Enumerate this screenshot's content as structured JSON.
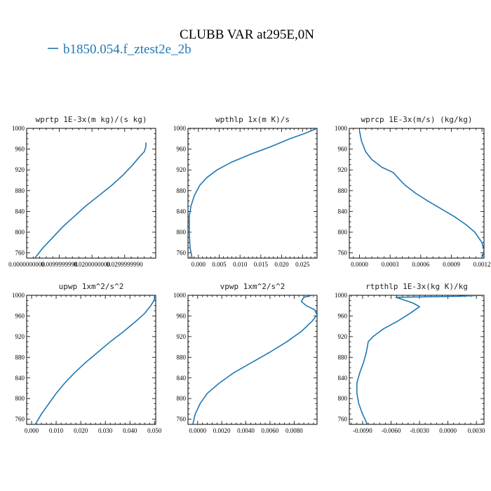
{
  "figure": {
    "title": "CLUBB VAR at295E,0N",
    "legend": [
      {
        "label": "b1850.054.f_ztest2e_2b",
        "color": "#1f77b4"
      }
    ]
  },
  "chart_data": [
    {
      "type": "line",
      "title": "wprtp  1E-3x(m kg)/(s kg)",
      "xlim": [
        0,
        0.0395
      ],
      "ylim": [
        1000,
        750
      ],
      "xticks": [
        0,
        0.01,
        0.02,
        0.03
      ],
      "xtick_labels": [
        "0.0000000000",
        "0.0099999998",
        "0.0200000000",
        "0.0299999990"
      ],
      "yticks": [
        760,
        800,
        840,
        880,
        920,
        960,
        1000
      ],
      "series": [
        {
          "color": "#1f77b4",
          "x": [
            0.0025,
            0.005,
            0.008,
            0.011,
            0.0145,
            0.018,
            0.022,
            0.026,
            0.0295,
            0.0325,
            0.0345,
            0.036,
            0.0365,
            0.0365
          ],
          "y": [
            750,
            770,
            790,
            810,
            830,
            850,
            870,
            890,
            910,
            930,
            945,
            955,
            965,
            972
          ]
        }
      ]
    },
    {
      "type": "line",
      "title": "wpthlp  1x(m K)/s",
      "xlim": [
        -0.0025,
        0.0285
      ],
      "ylim": [
        1000,
        750
      ],
      "xticks": [
        0,
        0.005,
        0.01,
        0.015,
        0.02,
        0.025
      ],
      "xtick_labels": [
        "0.000",
        "0.005",
        "0.010",
        "0.015",
        "0.020",
        "0.025"
      ],
      "yticks": [
        760,
        800,
        840,
        880,
        920,
        960,
        1000
      ],
      "series": [
        {
          "color": "#1f77b4",
          "x": [
            -0.0015,
            -0.002,
            -0.0022,
            -0.0022,
            -0.0018,
            -0.001,
            0.0003,
            0.002,
            0.0045,
            0.008,
            0.0125,
            0.0175,
            0.022,
            0.0255,
            0.0285
          ],
          "y": [
            750,
            770,
            800,
            830,
            850,
            870,
            890,
            905,
            920,
            935,
            950,
            965,
            980,
            990,
            1000
          ]
        }
      ]
    },
    {
      "type": "line",
      "title": "wprcp  1E-3x(m/s) (kg/kg)",
      "xlim": [
        -0.0001,
        0.00122
      ],
      "ylim": [
        1000,
        750
      ],
      "xticks": [
        0,
        0.0003,
        0.0006,
        0.0009,
        0.0012
      ],
      "xtick_labels": [
        "0.0000",
        "0.0003",
        "0.0006",
        "0.0009",
        "0.0012"
      ],
      "yticks": [
        760,
        800,
        840,
        880,
        920,
        960,
        1000
      ],
      "series": [
        {
          "color": "#1f77b4",
          "x": [
            0.0012,
            0.00122,
            0.0012,
            0.00113,
            0.00104,
            0.00093,
            0.0008,
            0.00067,
            0.00055,
            0.00045,
            0.0004,
            0.00033,
            0.00022,
            0.00012,
            6e-05,
            2e-05,
            0
          ],
          "y": [
            750,
            765,
            780,
            800,
            815,
            830,
            845,
            860,
            875,
            890,
            900,
            915,
            925,
            940,
            955,
            975,
            995
          ]
        }
      ]
    },
    {
      "type": "line",
      "title": "upwp  1xm^2/s^2",
      "xlim": [
        -0.002,
        0.0505
      ],
      "ylim": [
        1000,
        750
      ],
      "xticks": [
        0,
        0.01,
        0.02,
        0.03,
        0.04,
        0.05
      ],
      "xtick_labels": [
        "0.000",
        "0.010",
        "0.020",
        "0.030",
        "0.040",
        "0.050"
      ],
      "yticks": [
        760,
        800,
        840,
        880,
        920,
        960,
        1000
      ],
      "series": [
        {
          "color": "#1f77b4",
          "x": [
            0.0015,
            0.004,
            0.007,
            0.01,
            0.0135,
            0.0175,
            0.022,
            0.027,
            0.032,
            0.0375,
            0.0425,
            0.046,
            0.0485,
            0.0498,
            0.05,
            0.05
          ],
          "y": [
            750,
            770,
            790,
            810,
            830,
            850,
            870,
            890,
            910,
            930,
            950,
            965,
            980,
            990,
            995,
            1000
          ]
        }
      ]
    },
    {
      "type": "line",
      "title": "vpwp  1xm^2/s^2",
      "xlim": [
        -0.0008,
        0.0099
      ],
      "ylim": [
        1000,
        750
      ],
      "xticks": [
        0,
        0.002,
        0.004,
        0.006,
        0.008
      ],
      "xtick_labels": [
        "0.0000",
        "0.0020",
        "0.0040",
        "0.0060",
        "0.0080"
      ],
      "yticks": [
        760,
        800,
        840,
        880,
        920,
        960,
        1000
      ],
      "series": [
        {
          "color": "#1f77b4",
          "x": [
            -0.0004,
            -0.0002,
            0.0002,
            0.0008,
            0.0018,
            0.003,
            0.0045,
            0.006,
            0.0074,
            0.0086,
            0.0095,
            0.0099,
            0.0097,
            0.009,
            0.0086,
            0.0088,
            0.0095,
            0.0099
          ],
          "y": [
            750,
            770,
            790,
            810,
            830,
            850,
            870,
            890,
            910,
            930,
            950,
            962,
            972,
            980,
            988,
            996,
            1000,
            1000
          ]
        }
      ]
    },
    {
      "type": "line",
      "title": "rtpthlp  1E-3x(kg K)/kg",
      "xlim": [
        -0.0104,
        0.0038
      ],
      "ylim": [
        1000,
        750
      ],
      "xticks": [
        -0.009,
        -0.006,
        -0.003,
        0,
        0.003
      ],
      "xtick_labels": [
        "-0.0090",
        "-0.0060",
        "-0.0030",
        "0.0000",
        "0.0030"
      ],
      "yticks": [
        760,
        800,
        840,
        880,
        920,
        960,
        1000
      ],
      "series": [
        {
          "color": "#1f77b4",
          "x": [
            -0.0085,
            -0.009,
            -0.0094,
            -0.0096,
            -0.0096,
            -0.0093,
            -0.0089,
            -0.0086,
            -0.0084,
            -0.0079,
            -0.0068,
            -0.0053,
            -0.004,
            -0.003,
            -0.0037,
            -0.0048,
            -0.0055,
            -0.0025,
            0.001,
            0.0038
          ],
          "y": [
            750,
            770,
            790,
            810,
            830,
            850,
            870,
            890,
            910,
            920,
            935,
            950,
            965,
            978,
            985,
            992,
            996,
            997,
            998,
            1000
          ]
        }
      ]
    }
  ]
}
